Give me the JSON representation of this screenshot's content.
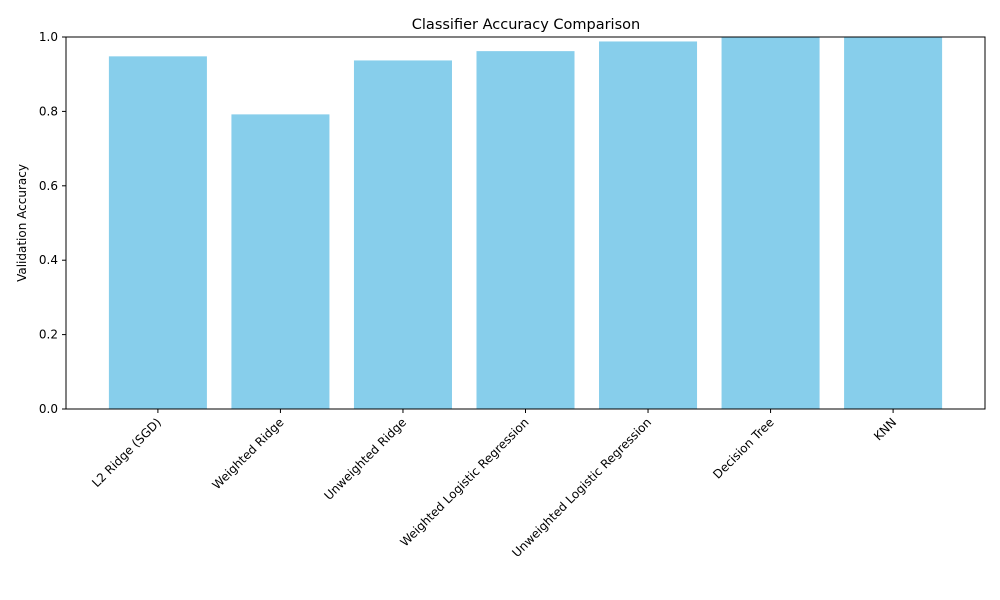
{
  "chart_data": {
    "type": "bar",
    "title": "Classifier Accuracy Comparison",
    "xlabel": "",
    "ylabel": "Validation Accuracy",
    "categories": [
      "L2 Ridge (SGD)",
      "Weighted Ridge",
      "Unweighted Ridge",
      "Weighted Logistic Regression",
      "Unweighted Logistic Regression",
      "Decision Tree",
      "KNN"
    ],
    "values": [
      0.948,
      0.792,
      0.937,
      0.962,
      0.988,
      1.0,
      1.0
    ],
    "ylim": [
      0,
      1.0
    ],
    "yticks": [
      "0.0",
      "0.2",
      "0.4",
      "0.6",
      "0.8",
      "1.0"
    ],
    "grid": false,
    "legend": "none",
    "colors": {
      "bar": "#87CEEB",
      "axis": "#000000",
      "background": "#ffffff"
    }
  }
}
